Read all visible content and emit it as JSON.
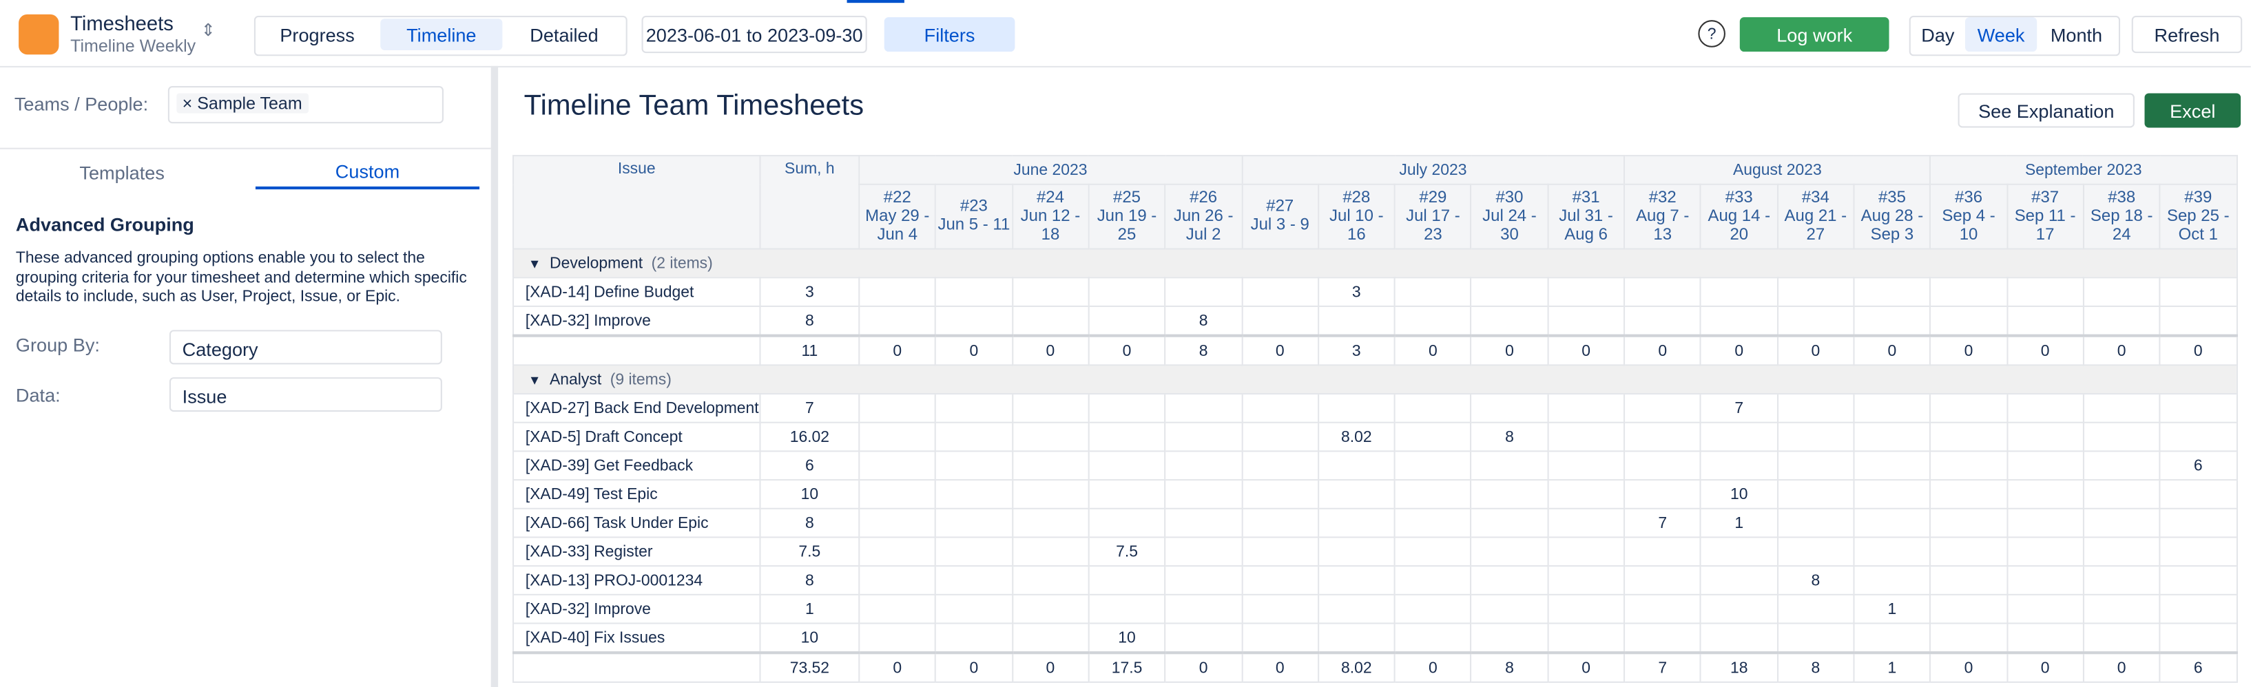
{
  "header": {
    "app_title": "Timesheets",
    "app_subtitle": "Timeline Weekly",
    "tabs": [
      "Progress",
      "Timeline",
      "Detailed"
    ],
    "date_range": "2023-06-01 to 2023-09-30",
    "filters": "Filters",
    "log_work": "Log work",
    "periods": [
      "Day",
      "Week",
      "Month"
    ],
    "refresh": "Refresh"
  },
  "sidebar": {
    "teams_label": "Teams / People:",
    "team_chip": "Sample Team",
    "tabs": [
      "Templates",
      "Custom"
    ],
    "section_title": "Advanced Grouping",
    "description": "These advanced grouping options enable you to select the grouping criteria for your timesheet and determine which specific details to include, such as User, Project, Issue, or Epic.",
    "group_by_label": "Group By:",
    "group_by_value": "Category",
    "data_label": "Data:",
    "data_value": "Issue"
  },
  "main": {
    "title": "Timeline Team Timesheets",
    "see_explanation": "See Explanation",
    "excel": "Excel"
  },
  "table": {
    "issue_header": "Issue",
    "sum_header": "Sum, h",
    "months": [
      "June 2023",
      "July 2023",
      "August 2023",
      "September 2023"
    ],
    "weeks": [
      {
        "number": "#22",
        "range": "May 29 - Jun 4"
      },
      {
        "number": "#23",
        "range": "Jun 5 - 11"
      },
      {
        "number": "#24",
        "range": "Jun 12 - 18"
      },
      {
        "number": "#25",
        "range": "Jun 19 - 25"
      },
      {
        "number": "#26",
        "range": "Jun 26 - Jul 2"
      },
      {
        "number": "#27",
        "range": "Jul 3 - 9"
      },
      {
        "number": "#28",
        "range": "Jul 10 - 16"
      },
      {
        "number": "#29",
        "range": "Jul 17 - 23"
      },
      {
        "number": "#30",
        "range": "Jul 24 - 30"
      },
      {
        "number": "#31",
        "range": "Jul 31 - Aug 6"
      },
      {
        "number": "#32",
        "range": "Aug 7 - 13"
      },
      {
        "number": "#33",
        "range": "Aug 14 - 20"
      },
      {
        "number": "#34",
        "range": "Aug 21 - 27"
      },
      {
        "number": "#35",
        "range": "Aug 28 - Sep 3"
      },
      {
        "number": "#36",
        "range": "Sep 4 - 10"
      },
      {
        "number": "#37",
        "range": "Sep 11 - 17"
      },
      {
        "number": "#38",
        "range": "Sep 18 - 24"
      },
      {
        "number": "#39",
        "range": "Sep 25 - Oct 1"
      }
    ],
    "groups": [
      {
        "name": "Development",
        "count": "(2 items)",
        "rows": [
          {
            "issue": "[XAD-14] Define Budget",
            "sum": 3,
            "weeks": [
              null,
              null,
              null,
              null,
              null,
              null,
              3,
              null,
              null,
              null,
              null,
              null,
              null,
              null,
              null,
              null,
              null,
              null
            ]
          },
          {
            "issue": "[XAD-32] Improve",
            "sum": 8,
            "weeks": [
              null,
              null,
              null,
              null,
              8,
              null,
              null,
              null,
              null,
              null,
              null,
              null,
              null,
              null,
              null,
              null,
              null,
              null
            ]
          }
        ],
        "total": {
          "sum": 11,
          "weeks": [
            0,
            0,
            0,
            0,
            8,
            0,
            3,
            0,
            0,
            0,
            0,
            0,
            0,
            0,
            0,
            0,
            0,
            0
          ]
        }
      },
      {
        "name": "Analyst",
        "count": "(9 items)",
        "rows": [
          {
            "issue": "[XAD-27] Back End Development",
            "sum": 7,
            "weeks": [
              null,
              null,
              null,
              null,
              null,
              null,
              null,
              null,
              null,
              null,
              null,
              7,
              null,
              null,
              null,
              null,
              null,
              null
            ]
          },
          {
            "issue": "[XAD-5] Draft Concept",
            "sum": 16.02,
            "weeks": [
              null,
              null,
              null,
              null,
              null,
              null,
              8.02,
              null,
              8,
              null,
              null,
              null,
              null,
              null,
              null,
              null,
              null,
              null
            ]
          },
          {
            "issue": "[XAD-39] Get Feedback",
            "sum": 6,
            "weeks": [
              null,
              null,
              null,
              null,
              null,
              null,
              null,
              null,
              null,
              null,
              null,
              null,
              null,
              null,
              null,
              null,
              null,
              6
            ]
          },
          {
            "issue": "[XAD-49] Test Epic",
            "sum": 10,
            "weeks": [
              null,
              null,
              null,
              null,
              null,
              null,
              null,
              null,
              null,
              null,
              null,
              10,
              null,
              null,
              null,
              null,
              null,
              null
            ]
          },
          {
            "issue": "[XAD-66] Task Under Epic",
            "sum": 8,
            "weeks": [
              null,
              null,
              null,
              null,
              null,
              null,
              null,
              null,
              null,
              null,
              7,
              1,
              null,
              null,
              null,
              null,
              null,
              null
            ]
          },
          {
            "issue": "[XAD-33] Register",
            "sum": 7.5,
            "weeks": [
              null,
              null,
              null,
              7.5,
              null,
              null,
              null,
              null,
              null,
              null,
              null,
              null,
              null,
              null,
              null,
              null,
              null,
              null
            ]
          },
          {
            "issue": "[XAD-13] PROJ-0001234",
            "sum": 8,
            "weeks": [
              null,
              null,
              null,
              null,
              null,
              null,
              null,
              null,
              null,
              null,
              null,
              null,
              8,
              null,
              null,
              null,
              null,
              null
            ]
          },
          {
            "issue": "[XAD-32] Improve",
            "sum": 1,
            "weeks": [
              null,
              null,
              null,
              null,
              null,
              null,
              null,
              null,
              null,
              null,
              null,
              null,
              null,
              1,
              null,
              null,
              null,
              null
            ]
          },
          {
            "issue": "[XAD-40] Fix Issues",
            "sum": 10,
            "weeks": [
              null,
              null,
              null,
              10,
              null,
              null,
              null,
              null,
              null,
              null,
              null,
              null,
              null,
              null,
              null,
              null,
              null,
              null
            ]
          }
        ],
        "total": {
          "sum": 73.52,
          "weeks": [
            0,
            0,
            0,
            17.5,
            0,
            0,
            8.02,
            0,
            8,
            0,
            7,
            18,
            8,
            1,
            0,
            0,
            0,
            6
          ]
        }
      }
    ]
  }
}
